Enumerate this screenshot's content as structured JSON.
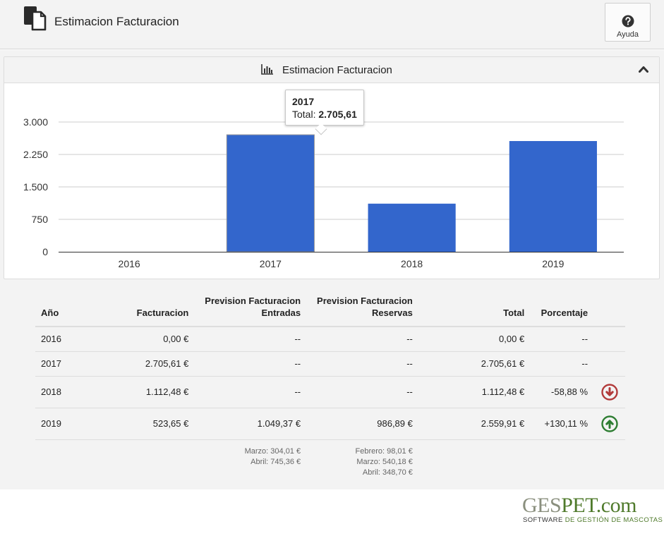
{
  "header": {
    "title": "Estimacion Facturacion",
    "help_label": "Ayuda"
  },
  "panel": {
    "title": "Estimacion Facturacion"
  },
  "chart_data": {
    "type": "bar",
    "categories": [
      "2016",
      "2017",
      "2018",
      "2019"
    ],
    "values": [
      0,
      2705.61,
      1112.48,
      2559.91
    ],
    "ylim": [
      0,
      3000
    ],
    "yticks": [
      0,
      750,
      1500,
      2250,
      3000
    ],
    "ytick_labels": [
      "0",
      "750",
      "1.500",
      "2.250",
      "3.000"
    ],
    "color": "#3366cc",
    "grid": true,
    "legend": "none",
    "tooltip": {
      "year": "2017",
      "label": "Total: ",
      "value": "2.705,61"
    }
  },
  "table": {
    "headers": {
      "year": "Año",
      "billing": "Facturacion",
      "forecast_entries": [
        "Prevision Facturacion",
        "Entradas"
      ],
      "forecast_bookings": [
        "Prevision Facturacion",
        "Reservas"
      ],
      "total": "Total",
      "percent": "Porcentaje"
    },
    "rows": [
      {
        "year": "2016",
        "billing": "0,00 €",
        "entries": "--",
        "bookings": "--",
        "total": "0,00 €",
        "percent": "--"
      },
      {
        "year": "2017",
        "billing": "2.705,61 €",
        "entries": "--",
        "bookings": "--",
        "total": "2.705,61 €",
        "percent": "--"
      },
      {
        "year": "2018",
        "billing": "1.112,48 €",
        "entries": "--",
        "bookings": "--",
        "total": "1.112,48 €",
        "percent": "-58,88 %",
        "trend": "down"
      },
      {
        "year": "2019",
        "billing": "523,65 €",
        "entries": "1.049,37 €",
        "bookings": "986,89 €",
        "total": "2.559,91 €",
        "percent": "+130,11 %",
        "trend": "up"
      }
    ],
    "notes": {
      "entries": [
        "Marzo: 304,01 €",
        "Abril: 745,36 €"
      ],
      "bookings": [
        "Febrero: 98,01 €",
        "Marzo: 540,18 €",
        "Abril: 348,70 €"
      ]
    }
  },
  "colors": {
    "trend_down": "#b23a3a",
    "trend_up": "#2e7d32",
    "bar": "#3366cc"
  },
  "logo": {
    "ges": "GES",
    "pet": "PET",
    "dom": ".com",
    "sub_a": "SOFTWARE ",
    "sub_b": "DE GESTIÓN DE MASCOTAS"
  }
}
